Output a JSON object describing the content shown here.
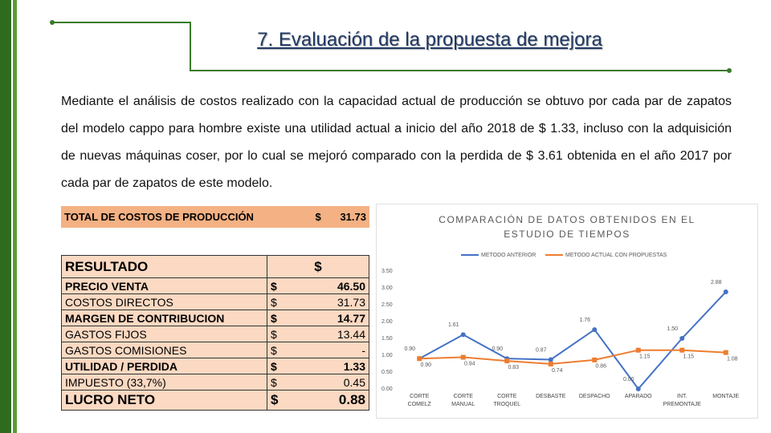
{
  "header": {
    "title": "7. Evaluación de la propuesta de mejora"
  },
  "paragraph": "Mediante el análisis de costos realizado con la capacidad actual de producción se obtuvo por cada par de zapatos del modelo cappo para hombre existe una utilidad actual a inicio del año 2018 de $ 1.33, incluso con la adquisición de nuevas máquinas coser, por lo cual se mejoró comparado con la perdida de $ 3.61 obtenida en el año 2017 por cada par de zapatos de este modelo.",
  "total_table": {
    "label": "TOTAL DE COSTOS DE PRODUCCIÓN",
    "currency": "$",
    "value": "31.73"
  },
  "result_table": {
    "header": [
      "RESULTADO",
      "$"
    ],
    "rows": [
      [
        "PRECIO VENTA",
        "$",
        "46.50"
      ],
      [
        "COSTOS DIRECTOS",
        "$",
        "31.73"
      ],
      [
        "MARGEN DE CONTRIBUCION",
        "$",
        "14.77"
      ],
      [
        "GASTOS FIJOS",
        "$",
        "13.44"
      ],
      [
        "GASTOS COMISIONES",
        "$",
        "-"
      ],
      [
        "UTILIDAD / PERDIDA",
        "$",
        "1.33"
      ],
      [
        "IMPUESTO (33,7%)",
        "$",
        "0.45"
      ],
      [
        "LUCRO NETO",
        "$",
        "0.88"
      ]
    ]
  },
  "chart_data": {
    "type": "line",
    "title": "COMPARACIÓN DE DATOS OBTENIDOS EN EL ESTUDIO DE TIEMPOS",
    "categories": [
      "CORTE COMELZ",
      "CORTE MANUAL",
      "CORTE TROQUEL",
      "DESBASTE",
      "DESPACHO",
      "APARADO",
      "INT. PREMONTAJE",
      "MONTAJE"
    ],
    "series": [
      {
        "name": "METODO ANTERIOR",
        "color": "#4472c4",
        "marker": "circle",
        "values": [
          0.9,
          1.61,
          0.9,
          0.87,
          1.76,
          0,
          1.5,
          2.88
        ],
        "value_labels": [
          "0.90",
          "1.61",
          "0.90",
          "0.87",
          "1.76",
          "0.00",
          "1.50",
          "2.88"
        ]
      },
      {
        "name": "METODO ACTUAL CON PROPUESTAS",
        "color": "#ed7d31",
        "marker": "square",
        "values": [
          0.9,
          0.94,
          0.83,
          0.74,
          0.86,
          1.15,
          1.15,
          1.08
        ],
        "value_labels": [
          "0.90",
          "0.94",
          "0.83",
          "0.74",
          "0.86",
          "1.15",
          "1.15",
          "1.08"
        ]
      }
    ],
    "ylim": [
      0,
      3.5
    ],
    "yticks": [
      {
        "value": 0,
        "label": "0.00"
      },
      {
        "value": 0.5,
        "label": "0.50"
      },
      {
        "value": 1,
        "label": "1.00"
      },
      {
        "value": 1.5,
        "label": "1.50"
      },
      {
        "value": 2,
        "label": "2.00"
      },
      {
        "value": 2.5,
        "label": "2.50"
      },
      {
        "value": 3,
        "label": "3.00"
      },
      {
        "value": 3.5,
        "label": "3.50"
      }
    ],
    "grid": false,
    "legend": "top"
  }
}
